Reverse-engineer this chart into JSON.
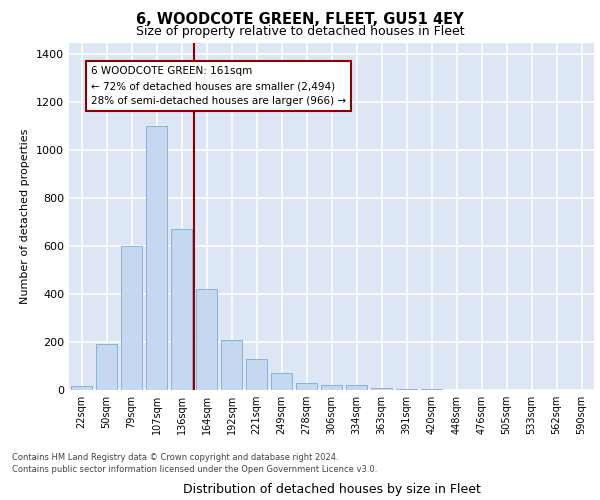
{
  "title1": "6, WOODCOTE GREEN, FLEET, GU51 4EY",
  "title2": "Size of property relative to detached houses in Fleet",
  "xlabel": "Distribution of detached houses by size in Fleet",
  "ylabel": "Number of detached properties",
  "bar_color": "#c5d8f0",
  "bar_edge_color": "#7bacd4",
  "categories": [
    "22sqm",
    "50sqm",
    "79sqm",
    "107sqm",
    "136sqm",
    "164sqm",
    "192sqm",
    "221sqm",
    "249sqm",
    "278sqm",
    "306sqm",
    "334sqm",
    "363sqm",
    "391sqm",
    "420sqm",
    "448sqm",
    "476sqm",
    "505sqm",
    "533sqm",
    "562sqm",
    "590sqm"
  ],
  "values": [
    15,
    190,
    600,
    1100,
    670,
    420,
    210,
    130,
    70,
    30,
    20,
    20,
    10,
    5,
    5,
    0,
    0,
    0,
    0,
    0,
    0
  ],
  "ylim": [
    0,
    1450
  ],
  "yticks": [
    0,
    200,
    400,
    600,
    800,
    1000,
    1200,
    1400
  ],
  "property_line_x": 4.5,
  "annotation_title": "6 WOODCOTE GREEN: 161sqm",
  "annotation_line1": "← 72% of detached houses are smaller (2,494)",
  "annotation_line2": "28% of semi-detached houses are larger (966) →",
  "footer_line1": "Contains HM Land Registry data © Crown copyright and database right 2024.",
  "footer_line2": "Contains public sector information licensed under the Open Government Licence v3.0.",
  "fig_bg_color": "#ffffff",
  "plot_bg_color": "#dce6f5",
  "grid_color": "#ffffff",
  "bar_width": 0.85
}
